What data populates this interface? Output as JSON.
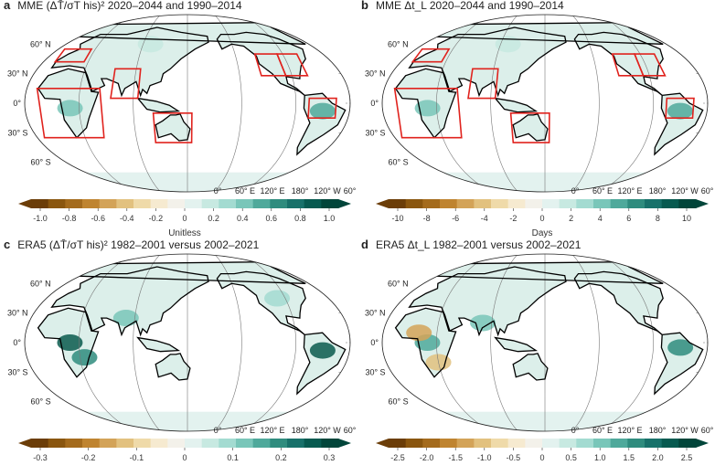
{
  "panels": [
    {
      "letter": "a",
      "title": "MME (ΔT̄/σT his)² 2020–2044 and 1990–2014",
      "unit": "Unitless",
      "ticks": [
        "-1.0",
        "-0.8",
        "-0.6",
        "-0.4",
        "-0.2",
        "0",
        "0.2",
        "0.4",
        "0.6",
        "0.8",
        "1.0"
      ],
      "boxes": true,
      "intensity": "low"
    },
    {
      "letter": "b",
      "title": "MME Δt_L 2020–2044 and 1990–2014",
      "unit": "Days",
      "ticks": [
        "-10",
        "-8",
        "-6",
        "-4",
        "-2",
        "0",
        "2",
        "4",
        "6",
        "8",
        "10"
      ],
      "boxes": true,
      "intensity": "low"
    },
    {
      "letter": "c",
      "title": "ERA5 (ΔT̄/σT his)² 1982–2001 versus 2002–2021",
      "unit": "",
      "ticks": [
        "-0.3",
        "-0.2",
        "-0.1",
        "0",
        "0.1",
        "0.2",
        "0.3"
      ],
      "boxes": false,
      "intensity": "high"
    },
    {
      "letter": "d",
      "title": "ERA5 Δt_L 1982–2001 versus 2002–2021",
      "unit": "",
      "ticks": [
        "-2.5",
        "-2.0",
        "-1.5",
        "-1.0",
        "-0.5",
        "0",
        "0.5",
        "1.0",
        "1.5",
        "2.0",
        "2.5"
      ],
      "boxes": false,
      "intensity": "mixed"
    }
  ],
  "lat_labels": [
    "60° N",
    "30° N",
    "0°",
    "30° S",
    "60° S"
  ],
  "lon_labels": [
    "0°",
    "60° E",
    "120° E",
    "180°",
    "120° W",
    "60° W"
  ],
  "colors": {
    "box": "#e0231e",
    "scale": [
      "#6b3d08",
      "#8a560f",
      "#a46b1d",
      "#bf8430",
      "#d3a358",
      "#e2c17f",
      "#efdaa9",
      "#f6ead0",
      "#f3f1ea",
      "#e3f2ef",
      "#c7e9e1",
      "#a3dbd1",
      "#79c6b9",
      "#4fa99b",
      "#2f8c7e",
      "#18716a",
      "#075a50",
      "#01453a"
    ]
  }
}
